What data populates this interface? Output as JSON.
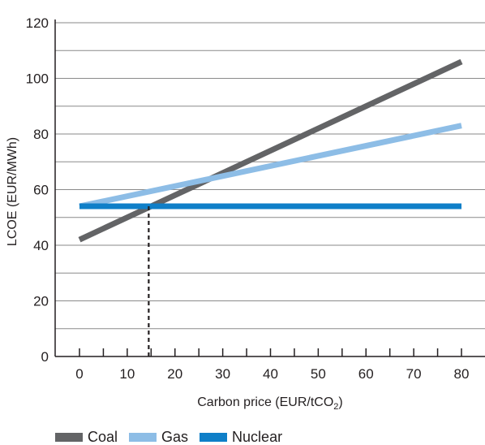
{
  "chart_data": {
    "type": "line",
    "xlabel": "Carbon price (EUR/tCO",
    "xlabel_sub": "2",
    "xlabel_tail": ")",
    "ylabel": "LCOE (EUR/MWh)",
    "xlim": [
      0,
      80
    ],
    "ylim": [
      0,
      120
    ],
    "x_ticks": [
      0,
      10,
      20,
      30,
      40,
      50,
      60,
      70,
      80
    ],
    "y_ticks": [
      0,
      20,
      40,
      60,
      80,
      100,
      120
    ],
    "grid": true,
    "legend_position": "bottom",
    "series": [
      {
        "name": "Coal",
        "color": "#636466",
        "x": [
          0,
          80
        ],
        "y": [
          42,
          106
        ]
      },
      {
        "name": "Gas",
        "color": "#8dbde6",
        "x": [
          0,
          80
        ],
        "y": [
          54,
          83
        ]
      },
      {
        "name": "Nuclear",
        "color": "#0f7fc8",
        "x": [
          0,
          80
        ],
        "y": [
          54,
          54
        ]
      }
    ],
    "annotations": [
      {
        "type": "dashed-vertical",
        "x": 14.5,
        "y": 54,
        "color": "#231f20"
      }
    ]
  }
}
